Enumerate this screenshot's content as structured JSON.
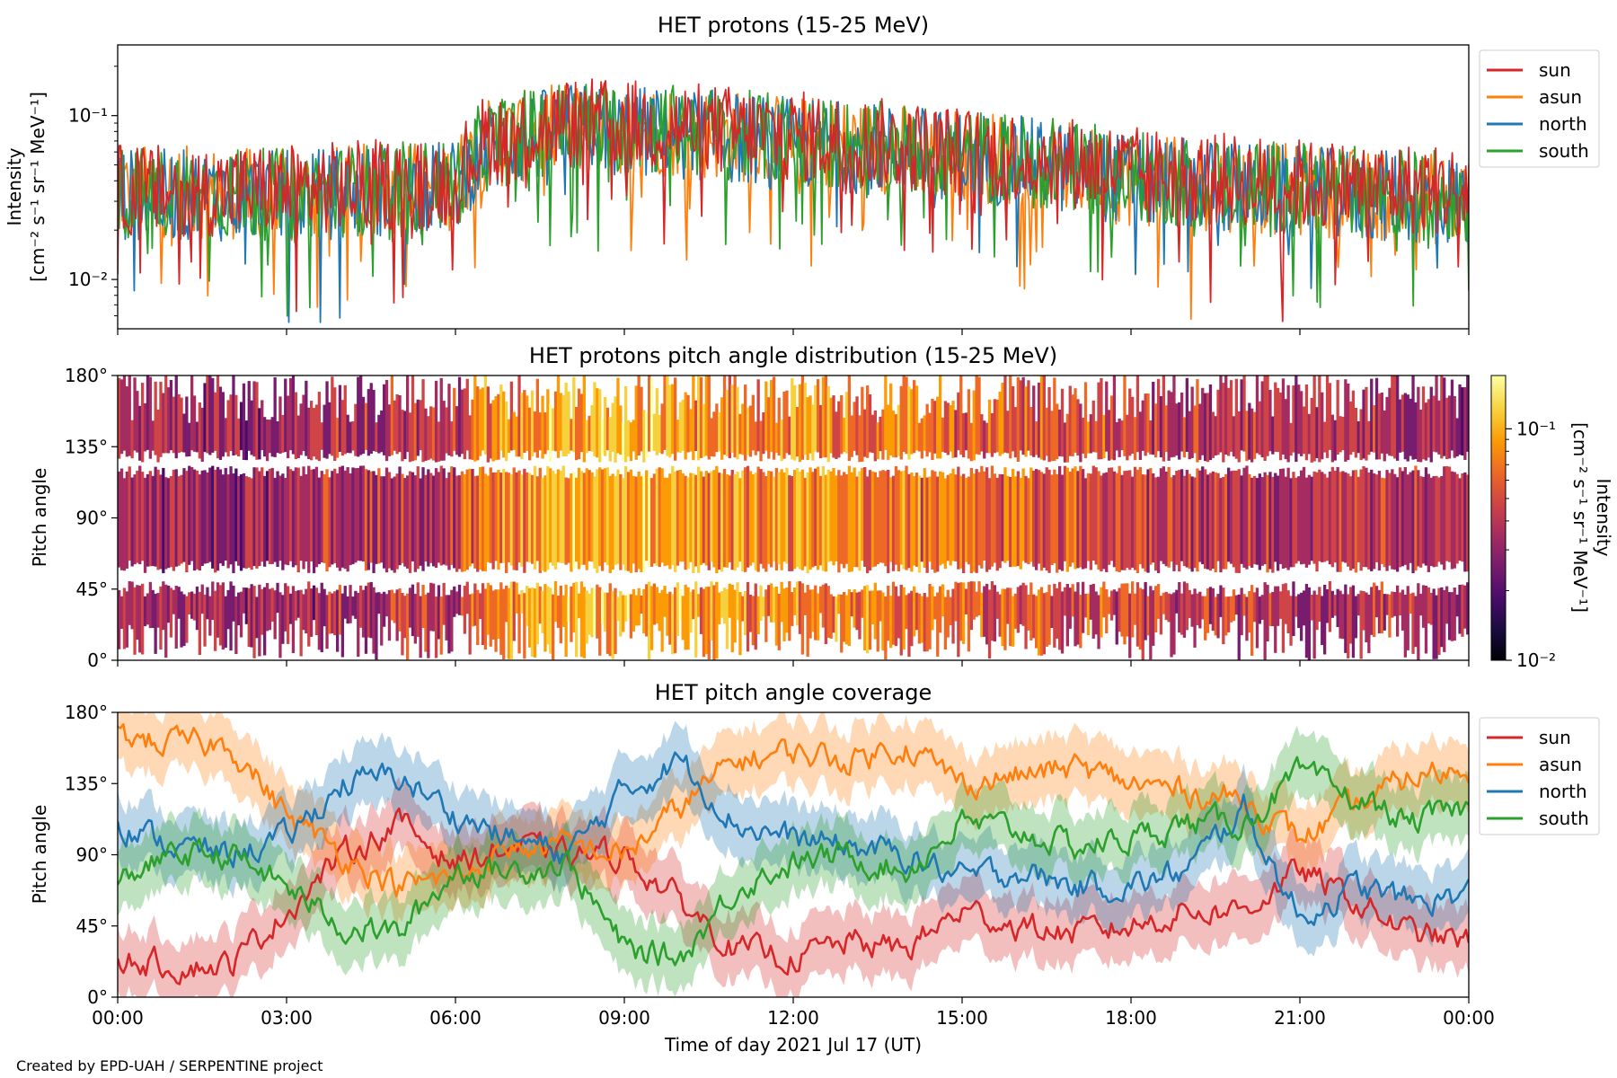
{
  "credit": "Created by EPD-UAH / SERPENTINE project",
  "chart_data": [
    {
      "type": "line",
      "title": "HET protons (15-25 MeV)",
      "ylabel_line1": "Intensity",
      "ylabel_line2": "[cm⁻² s⁻¹ sr⁻¹ MeV⁻¹]",
      "yscale": "log",
      "ylim": [
        0.005,
        0.27
      ],
      "yticks": [
        {
          "value": 0.1,
          "label": "10⁻¹"
        },
        {
          "value": 0.01,
          "label": "10⁻²"
        }
      ],
      "xlim_hours": [
        0,
        24
      ],
      "legend_position": "outside-right",
      "series": [
        {
          "name": "sun",
          "color": "#d62728",
          "profile_hours": [
            0,
            3,
            6,
            6.5,
            8,
            10,
            12,
            15,
            16.5,
            18,
            21,
            24
          ],
          "profile_values": [
            0.035,
            0.035,
            0.04,
            0.07,
            0.09,
            0.085,
            0.075,
            0.06,
            0.055,
            0.045,
            0.038,
            0.035
          ]
        },
        {
          "name": "asun",
          "color": "#ff7f0e",
          "profile_hours": [
            0,
            3,
            6,
            6.5,
            8,
            10,
            12,
            15,
            16.5,
            18,
            21,
            24
          ],
          "profile_values": [
            0.035,
            0.033,
            0.038,
            0.065,
            0.085,
            0.08,
            0.07,
            0.058,
            0.05,
            0.04,
            0.035,
            0.03
          ]
        },
        {
          "name": "north",
          "color": "#1f77b4",
          "profile_hours": [
            0,
            3,
            6,
            6.5,
            8,
            10,
            12,
            15,
            16.5,
            18,
            21,
            24
          ],
          "profile_values": [
            0.033,
            0.032,
            0.037,
            0.062,
            0.082,
            0.078,
            0.068,
            0.057,
            0.05,
            0.04,
            0.034,
            0.03
          ]
        },
        {
          "name": "south",
          "color": "#2ca02c",
          "profile_hours": [
            0,
            3,
            6,
            6.5,
            8,
            10,
            12,
            15,
            16.5,
            18,
            21,
            24
          ],
          "profile_values": [
            0.034,
            0.033,
            0.038,
            0.065,
            0.088,
            0.082,
            0.07,
            0.058,
            0.052,
            0.042,
            0.036,
            0.032
          ]
        }
      ]
    },
    {
      "type": "heatmap",
      "title": "HET protons pitch angle distribution (15-25 MeV)",
      "ylabel": "Pitch angle",
      "ylim": [
        0,
        180
      ],
      "yticks": [
        {
          "value": 0,
          "label": "0°"
        },
        {
          "value": 45,
          "label": "45°"
        },
        {
          "value": 90,
          "label": "90°"
        },
        {
          "value": 135,
          "label": "135°"
        },
        {
          "value": 180,
          "label": "180°"
        }
      ],
      "colorbar": {
        "colormap": "inferno",
        "scale": "log",
        "range": [
          0.01,
          0.17
        ],
        "ticks": [
          {
            "value": 0.1,
            "label": "10⁻¹"
          },
          {
            "value": 0.01,
            "label": "10⁻²"
          }
        ],
        "label_line1": "Intensity",
        "label_line2": "[cm⁻² s⁻¹ sr⁻¹ MeV⁻¹]",
        "colors": [
          "#000004",
          "#1b0c41",
          "#4a0c6b",
          "#781c6d",
          "#a52c60",
          "#cf4446",
          "#ed6925",
          "#fb9b06",
          "#f7d13d",
          "#fcffa4"
        ]
      }
    },
    {
      "type": "line",
      "title": "HET pitch angle coverage",
      "ylabel": "Pitch angle",
      "xlabel": "Time of day 2021 Jul 17 (UT)",
      "ylim": [
        0,
        180
      ],
      "yticks": [
        {
          "value": 0,
          "label": "0°"
        },
        {
          "value": 45,
          "label": "45°"
        },
        {
          "value": 90,
          "label": "90°"
        },
        {
          "value": 135,
          "label": "135°"
        },
        {
          "value": 180,
          "label": "180°"
        }
      ],
      "xlim_hours": [
        0,
        24
      ],
      "xticks": [
        {
          "value": 0,
          "label": "00:00"
        },
        {
          "value": 3,
          "label": "03:00"
        },
        {
          "value": 6,
          "label": "06:00"
        },
        {
          "value": 9,
          "label": "09:00"
        },
        {
          "value": 12,
          "label": "12:00"
        },
        {
          "value": 15,
          "label": "15:00"
        },
        {
          "value": 18,
          "label": "18:00"
        },
        {
          "value": 21,
          "label": "21:00"
        },
        {
          "value": 24,
          "label": "00:00"
        }
      ],
      "legend_position": "outside-right",
      "band_halfwidth_deg": 20,
      "series": [
        {
          "name": "sun",
          "color": "#d62728",
          "hours": [
            0,
            1,
            2,
            3,
            4,
            5,
            6,
            7,
            8,
            9,
            10,
            11,
            12,
            13,
            14,
            15,
            16,
            17,
            18,
            19,
            20,
            21,
            22,
            23,
            24
          ],
          "values": [
            25,
            20,
            20,
            55,
            90,
            110,
            85,
            95,
            90,
            90,
            60,
            30,
            25,
            35,
            30,
            55,
            45,
            40,
            45,
            55,
            55,
            80,
            60,
            40,
            35
          ]
        },
        {
          "name": "asun",
          "color": "#ff7f0e",
          "hours": [
            0,
            1,
            2,
            3,
            4,
            5,
            6,
            7,
            8,
            9,
            10,
            11,
            12,
            13,
            14,
            15,
            16,
            17,
            18,
            19,
            20,
            21,
            22,
            23,
            24
          ],
          "values": [
            165,
            160,
            160,
            115,
            90,
            70,
            75,
            95,
            95,
            90,
            120,
            150,
            155,
            150,
            160,
            135,
            140,
            145,
            135,
            130,
            125,
            100,
            120,
            140,
            145
          ]
        },
        {
          "name": "north",
          "color": "#1f77b4",
          "hours": [
            0,
            1,
            2,
            3,
            4,
            5,
            6,
            7,
            8,
            9,
            10,
            11,
            12,
            13,
            14,
            15,
            16,
            17,
            18,
            19,
            20,
            21,
            22,
            23,
            24
          ],
          "values": [
            110,
            95,
            90,
            100,
            135,
            140,
            115,
            100,
            90,
            130,
            150,
            110,
            100,
            95,
            90,
            75,
            80,
            70,
            70,
            80,
            120,
            50,
            70,
            60,
            65
          ]
        },
        {
          "name": "south",
          "color": "#2ca02c",
          "hours": [
            0,
            1,
            2,
            3,
            4,
            5,
            6,
            7,
            8,
            9,
            10,
            11,
            12,
            13,
            14,
            15,
            16,
            17,
            18,
            19,
            20,
            21,
            22,
            23,
            24
          ],
          "values": [
            75,
            90,
            90,
            70,
            45,
            40,
            80,
            80,
            85,
            30,
            25,
            70,
            85,
            90,
            80,
            110,
            105,
            95,
            100,
            110,
            110,
            140,
            125,
            110,
            120
          ]
        }
      ]
    }
  ]
}
